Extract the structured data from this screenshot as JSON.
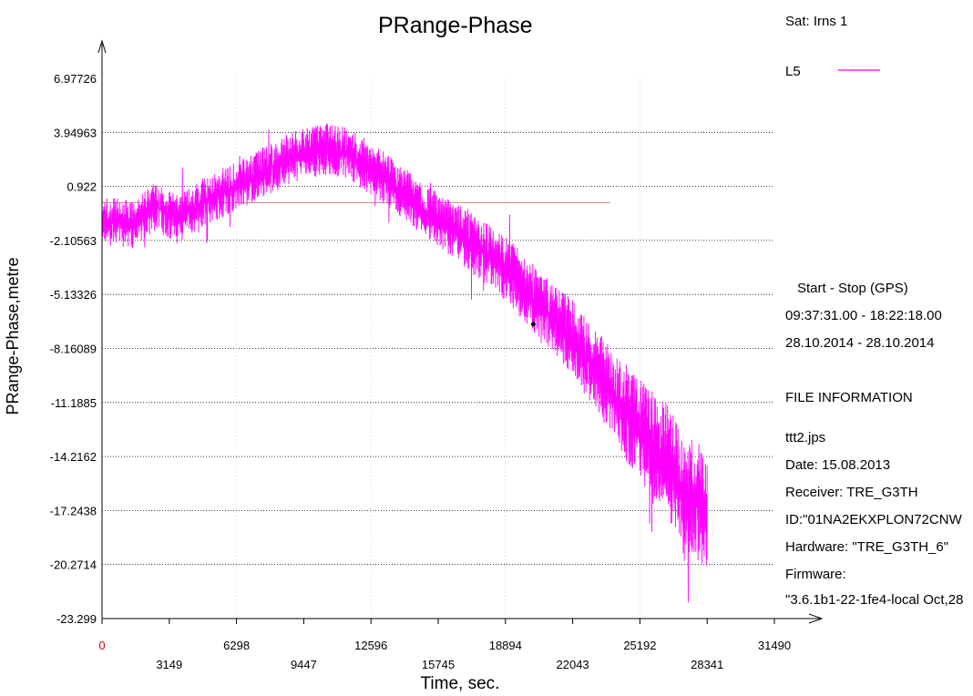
{
  "chart_data": {
    "type": "line",
    "title": "PRange-Phase",
    "xlabel": "Time, sec.",
    "ylabel": "PRange-Phase,metre",
    "xlim": [
      0,
      31490
    ],
    "ylim": [
      -23.299,
      6.97726
    ],
    "x_ticks_upper": [
      "0",
      "6298",
      "12596",
      "18894",
      "25192",
      "31490"
    ],
    "x_ticks_lower": [
      "3149",
      "9447",
      "15745",
      "22043",
      "28341"
    ],
    "y_ticks": [
      "6.97726",
      "3.94963",
      "0.922",
      "-2.10563",
      "-5.13326",
      "-8.16089",
      "-11.1885",
      "-14.2162",
      "-17.2438",
      "-20.2714",
      "-23.299"
    ],
    "grid": "horizontal dotted",
    "legend_position": "top-right",
    "series": [
      {
        "name": "L5",
        "color": "#ff00ff",
        "x_range": [
          0,
          28341
        ],
        "trend": [
          {
            "x": 0,
            "y": -1.0
          },
          {
            "x": 1500,
            "y": -1.2
          },
          {
            "x": 2500,
            "y": -0.2
          },
          {
            "x": 3500,
            "y": -0.9
          },
          {
            "x": 5000,
            "y": 0.2
          },
          {
            "x": 6500,
            "y": 1.0
          },
          {
            "x": 8000,
            "y": 2.0
          },
          {
            "x": 9000,
            "y": 2.6
          },
          {
            "x": 10500,
            "y": 3.0
          },
          {
            "x": 11500,
            "y": 2.8
          },
          {
            "x": 13000,
            "y": 1.6
          },
          {
            "x": 15000,
            "y": -0.3
          },
          {
            "x": 17000,
            "y": -2.0
          },
          {
            "x": 19000,
            "y": -3.8
          },
          {
            "x": 20500,
            "y": -5.8
          },
          {
            "x": 22000,
            "y": -7.5
          },
          {
            "x": 23500,
            "y": -10.0
          },
          {
            "x": 25000,
            "y": -12.5
          },
          {
            "x": 26500,
            "y": -14.5
          },
          {
            "x": 27500,
            "y": -16.5
          },
          {
            "x": 28341,
            "y": -17.0
          }
        ],
        "noise_amplitude": [
          {
            "x": 0,
            "a": 1.8
          },
          {
            "x": 15000,
            "a": 2.0
          },
          {
            "x": 22000,
            "a": 2.8
          },
          {
            "x": 28341,
            "a": 4.8
          }
        ]
      }
    ],
    "annotations": [
      {
        "type": "reference_line",
        "color": "#cc6666",
        "y": 0.0,
        "x_range": [
          0,
          23800
        ]
      },
      {
        "type": "dot",
        "x": 20200,
        "y": -6.8
      }
    ]
  },
  "side_panel": {
    "sat_label": "Sat: Irns   1",
    "legend_label": "L5",
    "start_stop_header": "Start  -  Stop  (GPS)",
    "start_stop_time": "09:37:31.00 - 18:22:18.00",
    "start_stop_date": "28.10.2014 - 28.10.2014",
    "file_info_header": "FILE INFORMATION",
    "file_name": "ttt2.jps",
    "date": "Date: 15.08.2013",
    "receiver": "Receiver: TRE_G3TH",
    "id": "ID:\"01NA2EKXPLON72CNW",
    "hardware": "Hardware: \"TRE_G3TH_6\"",
    "firmware_label": "Firmware:",
    "firmware_value": "\"3.6.1b1-22-1fe4-local Oct,28"
  }
}
